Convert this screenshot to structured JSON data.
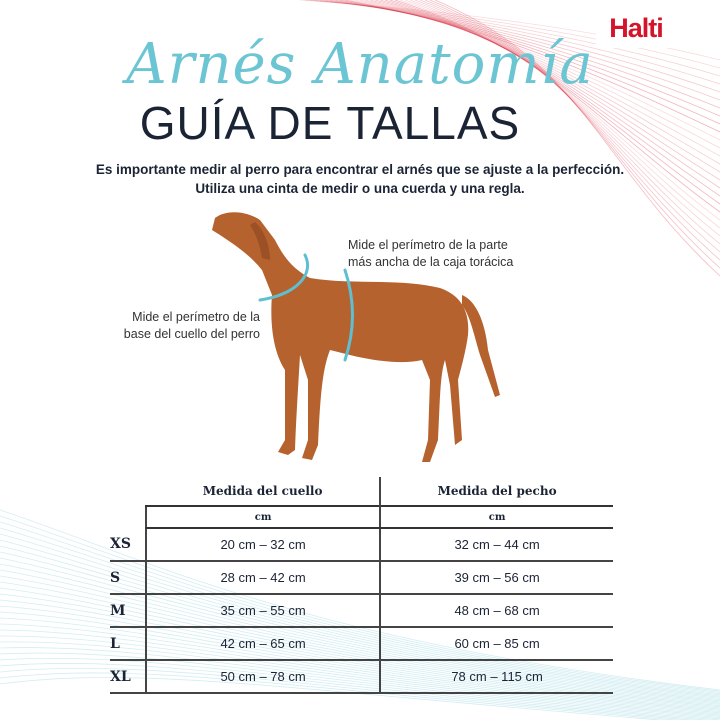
{
  "brand": {
    "logo": "Halti",
    "accent": "#d4142a",
    "teal": "#6cc5d3"
  },
  "header": {
    "script_title": "Arnés Anatomía",
    "title": "GUÍA DE TALLAS"
  },
  "intro": {
    "line1": "Es importante medir al perro para encontrar el arnés que se ajuste a la perfección.",
    "line2": "Utiliza una cinta de medir o una cuerda y una regla."
  },
  "notes": {
    "chest_line1": "Mide el perímetro de la parte",
    "chest_line2": "más ancha de la caja torácica",
    "neck_line1": "Mide el perímetro de la",
    "neck_line2": "base del cuello del perro"
  },
  "table": {
    "headers": [
      "Medida del cuello",
      "Medida del pecho"
    ],
    "units": [
      "cm",
      "cm"
    ],
    "rows": [
      {
        "size": "XS",
        "neck": "20 cm – 32 cm",
        "chest": "32 cm – 44 cm"
      },
      {
        "size": "S",
        "neck": "28 cm – 42 cm",
        "chest": "39 cm – 56 cm"
      },
      {
        "size": "M",
        "neck": "35 cm – 55 cm",
        "chest": "48 cm – 68 cm"
      },
      {
        "size": "L",
        "neck": "42 cm – 65 cm",
        "chest": "60 cm – 85 cm"
      },
      {
        "size": "XL",
        "neck": "50 cm – 78 cm",
        "chest": "78 cm – 115 cm"
      }
    ]
  }
}
